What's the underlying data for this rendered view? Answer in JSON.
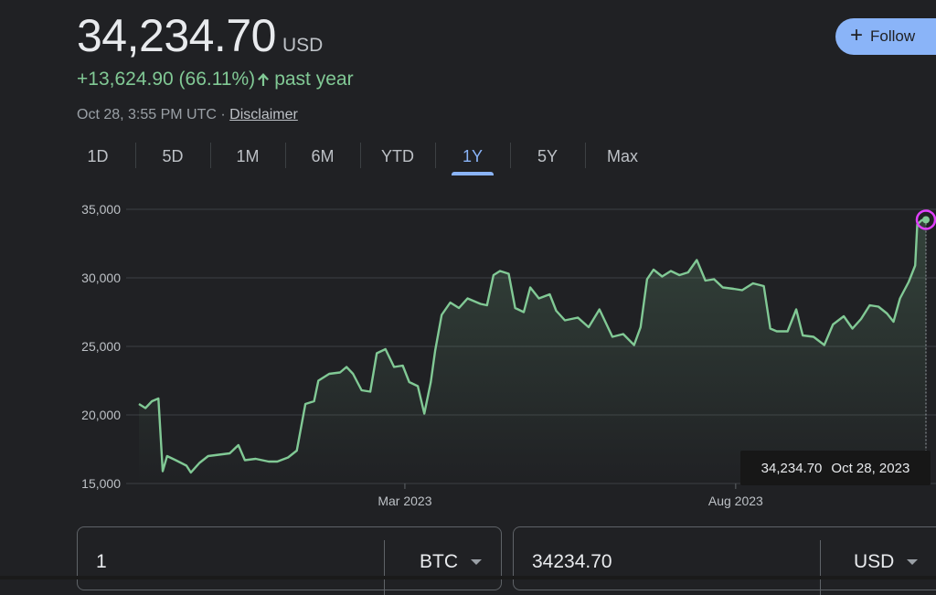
{
  "quote": {
    "price": "34,234.70",
    "currency": "USD",
    "change": "+13,624.90 (66.11%)",
    "change_period": "past year",
    "timestamp": "Oct 28, 3:55 PM UTC · ",
    "disclaimer": "Disclaimer"
  },
  "follow_button": {
    "label": "Follow",
    "color": "#8ab4f8"
  },
  "ranges": [
    "1D",
    "5D",
    "1M",
    "6M",
    "YTD",
    "1Y",
    "5Y",
    "Max"
  ],
  "active_range": "1Y",
  "tooltip": {
    "value": "34,234.70",
    "date": "Oct 28, 2023"
  },
  "converter": {
    "left": {
      "value": "1",
      "unit": "BTC"
    },
    "right": {
      "value": "34234.70",
      "unit": "USD"
    }
  },
  "chart_data": {
    "type": "area",
    "ylim": [
      15000,
      35000
    ],
    "y_ticks": [
      15000,
      20000,
      25000,
      30000,
      35000
    ],
    "y_tick_labels": [
      "15,000",
      "20,000",
      "25,000",
      "30,000",
      "35,000"
    ],
    "x_tick_labels": [
      {
        "label": "Mar 2023",
        "x": "2023-03-01"
      },
      {
        "label": "Aug 2023",
        "x": "2023-08-01"
      }
    ],
    "grid": true,
    "line_color": "#81c995",
    "highlight": {
      "x": "2023-10-28",
      "y": 34234.7,
      "color": "#e040fb"
    },
    "series": [
      {
        "points": [
          [
            "2022-10-29",
            20800
          ],
          [
            "2022-11-01",
            20500
          ],
          [
            "2022-11-04",
            21000
          ],
          [
            "2022-11-07",
            21200
          ],
          [
            "2022-11-09",
            15900
          ],
          [
            "2022-11-11",
            17000
          ],
          [
            "2022-11-15",
            16700
          ],
          [
            "2022-11-20",
            16300
          ],
          [
            "2022-11-22",
            15800
          ],
          [
            "2022-11-26",
            16500
          ],
          [
            "2022-11-30",
            17000
          ],
          [
            "2022-12-05",
            17100
          ],
          [
            "2022-12-10",
            17200
          ],
          [
            "2022-12-14",
            17800
          ],
          [
            "2022-12-17",
            16700
          ],
          [
            "2022-12-22",
            16800
          ],
          [
            "2022-12-28",
            16600
          ],
          [
            "2023-01-01",
            16600
          ],
          [
            "2023-01-06",
            16900
          ],
          [
            "2023-01-10",
            17400
          ],
          [
            "2023-01-14",
            20800
          ],
          [
            "2023-01-18",
            21000
          ],
          [
            "2023-01-20",
            22500
          ],
          [
            "2023-01-25",
            23000
          ],
          [
            "2023-01-30",
            23100
          ],
          [
            "2023-02-02",
            23500
          ],
          [
            "2023-02-05",
            23000
          ],
          [
            "2023-02-09",
            21800
          ],
          [
            "2023-02-13",
            21700
          ],
          [
            "2023-02-16",
            24500
          ],
          [
            "2023-02-20",
            24800
          ],
          [
            "2023-02-24",
            23500
          ],
          [
            "2023-02-28",
            23600
          ],
          [
            "2023-03-03",
            22400
          ],
          [
            "2023-03-07",
            22100
          ],
          [
            "2023-03-10",
            20100
          ],
          [
            "2023-03-13",
            22400
          ],
          [
            "2023-03-15",
            24700
          ],
          [
            "2023-03-18",
            27300
          ],
          [
            "2023-03-22",
            28200
          ],
          [
            "2023-03-26",
            27800
          ],
          [
            "2023-03-30",
            28500
          ],
          [
            "2023-04-05",
            28100
          ],
          [
            "2023-04-08",
            28000
          ],
          [
            "2023-04-11",
            30200
          ],
          [
            "2023-04-14",
            30500
          ],
          [
            "2023-04-18",
            30300
          ],
          [
            "2023-04-21",
            27800
          ],
          [
            "2023-04-25",
            27500
          ],
          [
            "2023-04-28",
            29300
          ],
          [
            "2023-05-02",
            28500
          ],
          [
            "2023-05-07",
            28800
          ],
          [
            "2023-05-10",
            27600
          ],
          [
            "2023-05-14",
            26900
          ],
          [
            "2023-05-20",
            27100
          ],
          [
            "2023-05-25",
            26400
          ],
          [
            "2023-05-30",
            27700
          ],
          [
            "2023-06-05",
            25700
          ],
          [
            "2023-06-10",
            25900
          ],
          [
            "2023-06-15",
            25100
          ],
          [
            "2023-06-18",
            26400
          ],
          [
            "2023-06-21",
            29900
          ],
          [
            "2023-06-24",
            30600
          ],
          [
            "2023-06-28",
            30100
          ],
          [
            "2023-07-02",
            30500
          ],
          [
            "2023-07-06",
            30200
          ],
          [
            "2023-07-10",
            30400
          ],
          [
            "2023-07-14",
            31300
          ],
          [
            "2023-07-18",
            29800
          ],
          [
            "2023-07-22",
            29900
          ],
          [
            "2023-07-26",
            29300
          ],
          [
            "2023-07-31",
            29200
          ],
          [
            "2023-08-04",
            29100
          ],
          [
            "2023-08-09",
            29600
          ],
          [
            "2023-08-14",
            29400
          ],
          [
            "2023-08-17",
            26300
          ],
          [
            "2023-08-20",
            26100
          ],
          [
            "2023-08-25",
            26100
          ],
          [
            "2023-08-29",
            27700
          ],
          [
            "2023-09-01",
            25800
          ],
          [
            "2023-09-06",
            25700
          ],
          [
            "2023-09-11",
            25100
          ],
          [
            "2023-09-15",
            26600
          ],
          [
            "2023-09-20",
            27200
          ],
          [
            "2023-09-24",
            26300
          ],
          [
            "2023-09-28",
            27000
          ],
          [
            "2023-10-02",
            28000
          ],
          [
            "2023-10-06",
            27900
          ],
          [
            "2023-10-10",
            27400
          ],
          [
            "2023-10-13",
            26800
          ],
          [
            "2023-10-16",
            28500
          ],
          [
            "2023-10-20",
            29700
          ],
          [
            "2023-10-23",
            30900
          ],
          [
            "2023-10-24",
            33900
          ],
          [
            "2023-10-26",
            34200
          ],
          [
            "2023-10-28",
            34234.7
          ]
        ]
      }
    ]
  }
}
